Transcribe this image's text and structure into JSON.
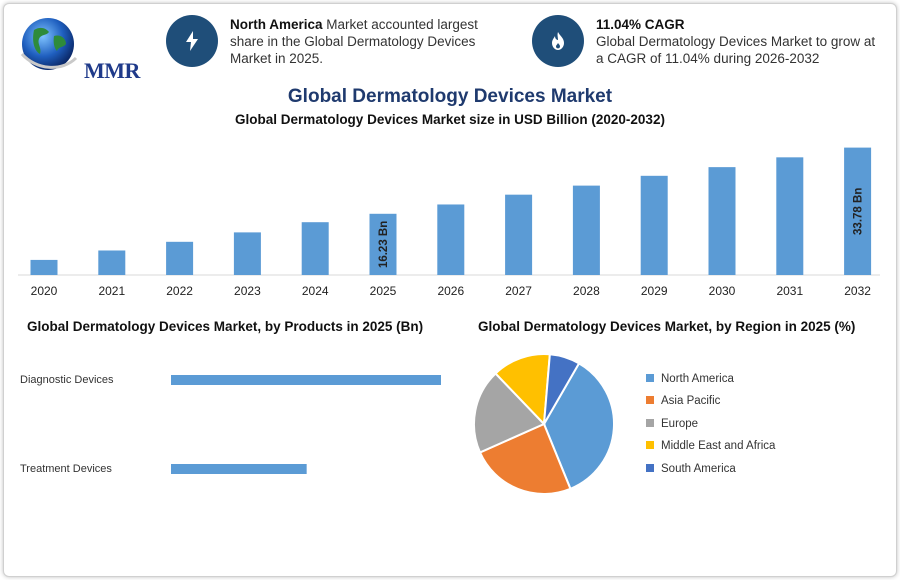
{
  "logo": {
    "text": "MMR"
  },
  "highlights": [
    {
      "icon": "lightning-icon",
      "bold": "North America",
      "text": " Market accounted largest share in the Global Dermatology Devices Market in 2025."
    },
    {
      "icon": "flame-icon",
      "bold": "11.04% CAGR",
      "text": "Global Dermatology Devices Market to grow at a CAGR of 11.04% during 2026-2032"
    }
  ],
  "title": "Global Dermatology Devices Market",
  "chart_data": [
    {
      "type": "bar",
      "title": "Global Dermatology Devices Market size in USD Billion (2020-2032)",
      "categories": [
        "2020",
        "2021",
        "2022",
        "2023",
        "2024",
        "2025",
        "2026",
        "2027",
        "2028",
        "2029",
        "2030",
        "2031",
        "2032"
      ],
      "values": [
        4.0,
        6.5,
        8.8,
        11.3,
        14.0,
        16.23,
        18.7,
        21.3,
        23.7,
        26.3,
        28.6,
        31.2,
        33.78
      ],
      "data_labels": [
        {
          "category": "2025",
          "text": "16.23 Bn"
        },
        {
          "category": "2032",
          "text": "33.78 Bn"
        }
      ],
      "ylim": [
        0,
        35
      ],
      "color": "#5b9bd5",
      "grid": false
    },
    {
      "type": "bar",
      "orientation": "horizontal",
      "title": "Global Dermatology Devices Market, by Products in 2025 (Bn)",
      "categories": [
        "Diagnostic Devices",
        "Treatment Devices"
      ],
      "values": [
        10.15,
        5.1
      ],
      "xlim": [
        0,
        10.15
      ],
      "color": "#5b9bd5"
    },
    {
      "type": "pie",
      "title": "Global Dermatology Devices Market, by Region in 2025 (%)",
      "labels": [
        "North America",
        "Asia Pacific",
        "Europe",
        "Middle East and Africa",
        "South America"
      ],
      "values": [
        35.5,
        24.5,
        19.5,
        13.5,
        7.0
      ],
      "colors": [
        "#5b9bd5",
        "#ed7d31",
        "#a5a5a5",
        "#ffc000",
        "#4472c4"
      ],
      "legend": "right"
    }
  ]
}
